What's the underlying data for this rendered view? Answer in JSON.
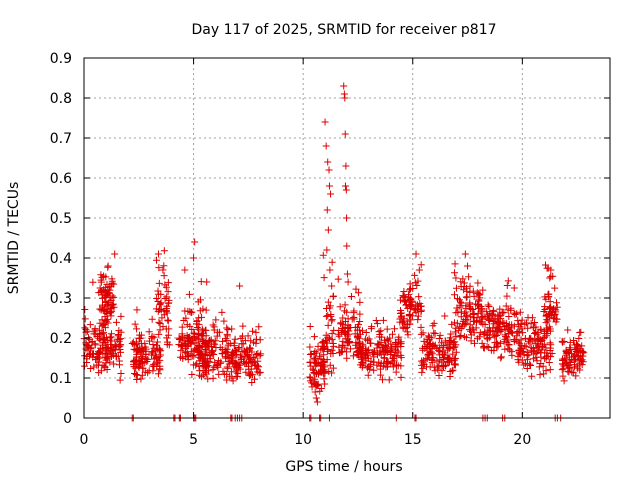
{
  "chart_data": {
    "type": "scatter",
    "title": "Day 117 of 2025, SRMTID for receiver p817",
    "xlabel": "GPS time / hours",
    "ylabel": "SRMTID / TECUs",
    "xlim": [
      0,
      24
    ],
    "ylim": [
      0,
      0.9
    ],
    "xticks": [
      0,
      5,
      10,
      15,
      20
    ],
    "xtick_labels": [
      "0",
      "5",
      "10",
      "15",
      "20"
    ],
    "yticks": [
      0,
      0.1,
      0.2,
      0.3,
      0.4,
      0.5,
      0.6,
      0.7,
      0.8,
      0.9
    ],
    "ytick_labels": [
      "0",
      "0.1",
      "0.2",
      "0.3",
      "0.4",
      "0.5",
      "0.6",
      "0.7",
      "0.8",
      "0.9"
    ],
    "grid": true,
    "marker": "+",
    "series_color": "#dd0000",
    "series": [
      {
        "name": "SRMTID",
        "segments": [
          {
            "x_start": 0.0,
            "x_end": 1.7,
            "base": 0.17,
            "spread": 0.06,
            "n": 150
          },
          {
            "x_start": 0.7,
            "x_end": 1.4,
            "base": 0.29,
            "spread": 0.06,
            "n": 70
          },
          {
            "x_start": 2.2,
            "x_end": 3.5,
            "base": 0.15,
            "spread": 0.06,
            "n": 110
          },
          {
            "x_start": 3.3,
            "x_end": 3.9,
            "base": 0.27,
            "spread": 0.08,
            "n": 50
          },
          {
            "x_start": 4.3,
            "x_end": 5.6,
            "base": 0.19,
            "spread": 0.07,
            "n": 110
          },
          {
            "x_start": 5.2,
            "x_end": 6.6,
            "base": 0.15,
            "spread": 0.06,
            "n": 110
          },
          {
            "x_start": 6.4,
            "x_end": 8.1,
            "base": 0.14,
            "spread": 0.05,
            "n": 130
          },
          {
            "x_start": 10.3,
            "x_end": 11.0,
            "base": 0.12,
            "spread": 0.06,
            "n": 70
          },
          {
            "x_start": 10.9,
            "x_end": 11.4,
            "base": 0.2,
            "spread": 0.1,
            "n": 50
          },
          {
            "x_start": 11.6,
            "x_end": 12.6,
            "base": 0.21,
            "spread": 0.07,
            "n": 80
          },
          {
            "x_start": 12.5,
            "x_end": 14.5,
            "base": 0.16,
            "spread": 0.05,
            "n": 160
          },
          {
            "x_start": 14.4,
            "x_end": 15.4,
            "base": 0.27,
            "spread": 0.07,
            "n": 80
          },
          {
            "x_start": 15.4,
            "x_end": 17.0,
            "base": 0.16,
            "spread": 0.05,
            "n": 130
          },
          {
            "x_start": 16.9,
            "x_end": 18.2,
            "base": 0.26,
            "spread": 0.07,
            "n": 110
          },
          {
            "x_start": 18.2,
            "x_end": 19.8,
            "base": 0.22,
            "spread": 0.06,
            "n": 130
          },
          {
            "x_start": 19.8,
            "x_end": 21.3,
            "base": 0.17,
            "spread": 0.06,
            "n": 120
          },
          {
            "x_start": 21.0,
            "x_end": 21.6,
            "base": 0.26,
            "spread": 0.07,
            "n": 50
          },
          {
            "x_start": 21.8,
            "x_end": 22.8,
            "base": 0.15,
            "spread": 0.05,
            "n": 80
          }
        ],
        "peaks": [
          {
            "x": 11.0,
            "y": 0.74
          },
          {
            "x": 11.05,
            "y": 0.68
          },
          {
            "x": 11.12,
            "y": 0.64
          },
          {
            "x": 11.18,
            "y": 0.62
          },
          {
            "x": 11.2,
            "y": 0.58
          },
          {
            "x": 11.25,
            "y": 0.56
          },
          {
            "x": 11.1,
            "y": 0.52
          },
          {
            "x": 11.15,
            "y": 0.47
          },
          {
            "x": 11.08,
            "y": 0.42
          },
          {
            "x": 11.22,
            "y": 0.37
          },
          {
            "x": 11.3,
            "y": 0.33
          },
          {
            "x": 11.85,
            "y": 0.83
          },
          {
            "x": 11.88,
            "y": 0.81
          },
          {
            "x": 11.9,
            "y": 0.8
          },
          {
            "x": 11.92,
            "y": 0.71
          },
          {
            "x": 11.95,
            "y": 0.63
          },
          {
            "x": 11.93,
            "y": 0.58
          },
          {
            "x": 11.97,
            "y": 0.57
          },
          {
            "x": 11.98,
            "y": 0.5
          },
          {
            "x": 11.99,
            "y": 0.43
          },
          {
            "x": 12.02,
            "y": 0.36
          },
          {
            "x": 12.05,
            "y": 0.34
          },
          {
            "x": 0.5,
            "y": 0.22
          },
          {
            "x": 1.4,
            "y": 0.41
          },
          {
            "x": 1.1,
            "y": 0.38
          },
          {
            "x": 3.4,
            "y": 0.41
          },
          {
            "x": 3.6,
            "y": 0.37
          },
          {
            "x": 5.05,
            "y": 0.44
          },
          {
            "x": 5.0,
            "y": 0.4
          },
          {
            "x": 4.6,
            "y": 0.37
          },
          {
            "x": 5.6,
            "y": 0.34
          },
          {
            "x": 7.1,
            "y": 0.33
          },
          {
            "x": 15.15,
            "y": 0.41
          },
          {
            "x": 15.3,
            "y": 0.37
          },
          {
            "x": 17.4,
            "y": 0.41
          },
          {
            "x": 17.5,
            "y": 0.38
          },
          {
            "x": 21.3,
            "y": 0.37
          },
          {
            "x": 21.25,
            "y": 0.35
          },
          {
            "x": 10.6,
            "y": 0.05
          },
          {
            "x": 10.65,
            "y": 0.04
          }
        ],
        "zero_points_x": [
          2.2,
          2.25,
          4.1,
          4.15,
          4.35,
          4.4,
          5.0,
          5.05,
          5.1,
          6.7,
          6.75,
          6.9,
          7.0,
          7.1,
          7.2,
          10.3,
          10.35,
          10.75,
          10.8,
          11.2,
          14.25,
          15.1,
          15.15,
          18.2,
          18.3,
          18.4,
          19.1,
          19.2,
          21.5,
          21.6,
          21.75
        ]
      }
    ]
  }
}
